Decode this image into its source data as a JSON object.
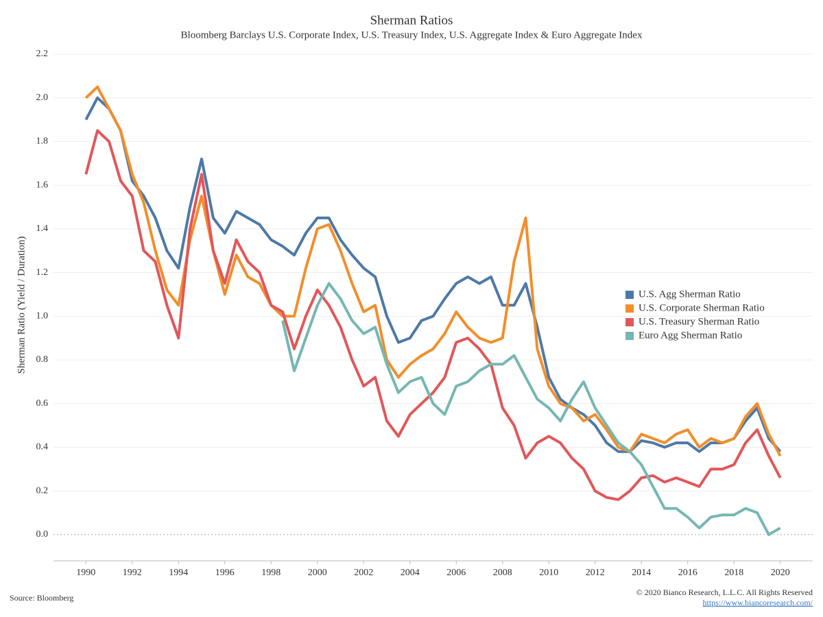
{
  "chart_data": {
    "type": "line",
    "title": "Sherman Ratios",
    "subtitle": "Bloomberg Barclays U.S. Corporate Index, U.S. Treasury Index, U.S. Aggregate Index & Euro Aggregate Index",
    "y_label": "Sherman Ratio (Yield / Duration)",
    "source": "Source: Bloomberg",
    "copyright": "© 2020 Bianco Research, L.L.C. All Rights Reserved",
    "url": "https://www.biancoresearch.com/",
    "x": [
      1990,
      1990.5,
      1991,
      1991.5,
      1992,
      1992.5,
      1993,
      1993.5,
      1994,
      1994.5,
      1995,
      1995.5,
      1996,
      1996.5,
      1997,
      1997.5,
      1998,
      1998.5,
      1999,
      1999.5,
      2000,
      2000.5,
      2001,
      2001.5,
      2002,
      2002.5,
      2003,
      2003.5,
      2004,
      2004.5,
      2005,
      2005.5,
      2006,
      2006.5,
      2007,
      2007.5,
      2008,
      2008.5,
      2009,
      2009.5,
      2010,
      2010.5,
      2011,
      2011.5,
      2012,
      2012.5,
      2013,
      2013.5,
      2014,
      2014.5,
      2015,
      2015.5,
      2016,
      2016.5,
      2017,
      2017.5,
      2018,
      2018.5,
      2019,
      2019.5,
      2020
    ],
    "series": [
      {
        "name": "U.S. Agg Sherman Ratio",
        "color": "#4e79a7",
        "values": [
          1.9,
          2.0,
          1.95,
          1.85,
          1.62,
          1.55,
          1.45,
          1.3,
          1.22,
          1.5,
          1.72,
          1.45,
          1.38,
          1.48,
          1.45,
          1.42,
          1.35,
          1.32,
          1.28,
          1.38,
          1.45,
          1.45,
          1.35,
          1.28,
          1.22,
          1.18,
          1.0,
          0.88,
          0.9,
          0.98,
          1.0,
          1.08,
          1.15,
          1.18,
          1.15,
          1.18,
          1.05,
          1.05,
          1.15,
          0.95,
          0.72,
          0.62,
          0.58,
          0.55,
          0.5,
          0.42,
          0.38,
          0.38,
          0.43,
          0.42,
          0.4,
          0.42,
          0.42,
          0.38,
          0.42,
          0.42,
          0.44,
          0.52,
          0.58,
          0.44,
          0.38
        ]
      },
      {
        "name": "U.S. Corporate Sherman Ratio",
        "color": "#f28e2b",
        "values": [
          2.0,
          2.05,
          1.95,
          1.85,
          1.65,
          1.52,
          1.3,
          1.12,
          1.05,
          1.35,
          1.55,
          1.3,
          1.1,
          1.28,
          1.18,
          1.15,
          1.05,
          1.0,
          1.0,
          1.22,
          1.4,
          1.42,
          1.3,
          1.15,
          1.02,
          1.05,
          0.8,
          0.72,
          0.78,
          0.82,
          0.85,
          0.92,
          1.02,
          0.95,
          0.9,
          0.88,
          0.9,
          1.25,
          1.45,
          0.85,
          0.68,
          0.6,
          0.58,
          0.52,
          0.55,
          0.48,
          0.4,
          0.38,
          0.46,
          0.44,
          0.42,
          0.46,
          0.48,
          0.4,
          0.44,
          0.42,
          0.44,
          0.54,
          0.6,
          0.46,
          0.36
        ]
      },
      {
        "name": "U.S. Treasury Sherman Ratio",
        "color": "#e15759",
        "values": [
          1.65,
          1.85,
          1.8,
          1.62,
          1.55,
          1.3,
          1.25,
          1.05,
          0.9,
          1.4,
          1.65,
          1.3,
          1.15,
          1.35,
          1.25,
          1.2,
          1.05,
          1.02,
          0.85,
          1.0,
          1.12,
          1.05,
          0.95,
          0.8,
          0.68,
          0.72,
          0.52,
          0.45,
          0.55,
          0.6,
          0.65,
          0.72,
          0.88,
          0.9,
          0.85,
          0.78,
          0.58,
          0.5,
          0.35,
          0.42,
          0.45,
          0.42,
          0.35,
          0.3,
          0.2,
          0.17,
          0.16,
          0.2,
          0.26,
          0.27,
          0.24,
          0.26,
          0.24,
          0.22,
          0.3,
          0.3,
          0.32,
          0.42,
          0.48,
          0.36,
          0.26
        ]
      },
      {
        "name": "Euro Agg Sherman Ratio",
        "color": "#76b7b2",
        "values": [
          null,
          null,
          null,
          null,
          null,
          null,
          null,
          null,
          null,
          null,
          null,
          null,
          null,
          null,
          null,
          null,
          null,
          0.98,
          0.75,
          0.9,
          1.05,
          1.15,
          1.08,
          0.98,
          0.92,
          0.95,
          0.78,
          0.65,
          0.7,
          0.72,
          0.6,
          0.55,
          0.68,
          0.7,
          0.75,
          0.78,
          0.78,
          0.82,
          0.72,
          0.62,
          0.58,
          0.52,
          0.62,
          0.7,
          0.58,
          0.5,
          0.42,
          0.38,
          0.32,
          0.22,
          0.12,
          0.12,
          0.08,
          0.03,
          0.08,
          0.09,
          0.09,
          0.12,
          0.1,
          0.0,
          0.03
        ]
      }
    ],
    "xlim": [
      1988.6,
      2021.4
    ],
    "xticks": [
      1990,
      1992,
      1994,
      1996,
      1998,
      2000,
      2002,
      2004,
      2006,
      2008,
      2010,
      2012,
      2014,
      2016,
      2018,
      2020
    ],
    "ylim": [
      -0.12,
      2.2
    ],
    "yticks": [
      {
        "value": 0,
        "label": "0.0"
      },
      0.2,
      0.4,
      0.6,
      0.8,
      {
        "value": 1,
        "label": "1.0"
      },
      1.2,
      1.4,
      1.6,
      1.8,
      {
        "value": 2,
        "label": "2.0"
      },
      2.2
    ],
    "grid": true,
    "legend": "right"
  }
}
